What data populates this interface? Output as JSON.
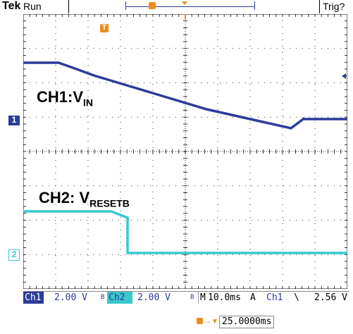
{
  "header": {
    "brand": "Tek",
    "run_state": "Run",
    "trigger_status": "Trig?"
  },
  "waveform_labels": {
    "ch1_prefix": "CH1:V",
    "ch1_sub": "IN",
    "ch2_prefix": "CH2: V",
    "ch2_sub": "RESETB"
  },
  "markers": {
    "ch1": "1",
    "ch2": "2",
    "trigger": "T"
  },
  "status_bar": {
    "ch1_label": "Ch1",
    "ch1_scale": "2.00 V",
    "ch1_bw_flag": "B",
    "ch2_label": "Ch2",
    "ch2_scale": "2.00 V",
    "ch2_bw_flag": "B",
    "timebase_prefix": "M",
    "timebase": "10.0ms",
    "acquisition": "A",
    "trigger_source": "Ch1",
    "trigger_edge": "\\",
    "trigger_level": "2.56 V"
  },
  "delay": {
    "value": "25.0000ms"
  },
  "colors": {
    "ch1": "#2b3c9b",
    "ch2": "#3ac8cc",
    "trigger": "#f08a1d",
    "grid": "#000000"
  }
}
